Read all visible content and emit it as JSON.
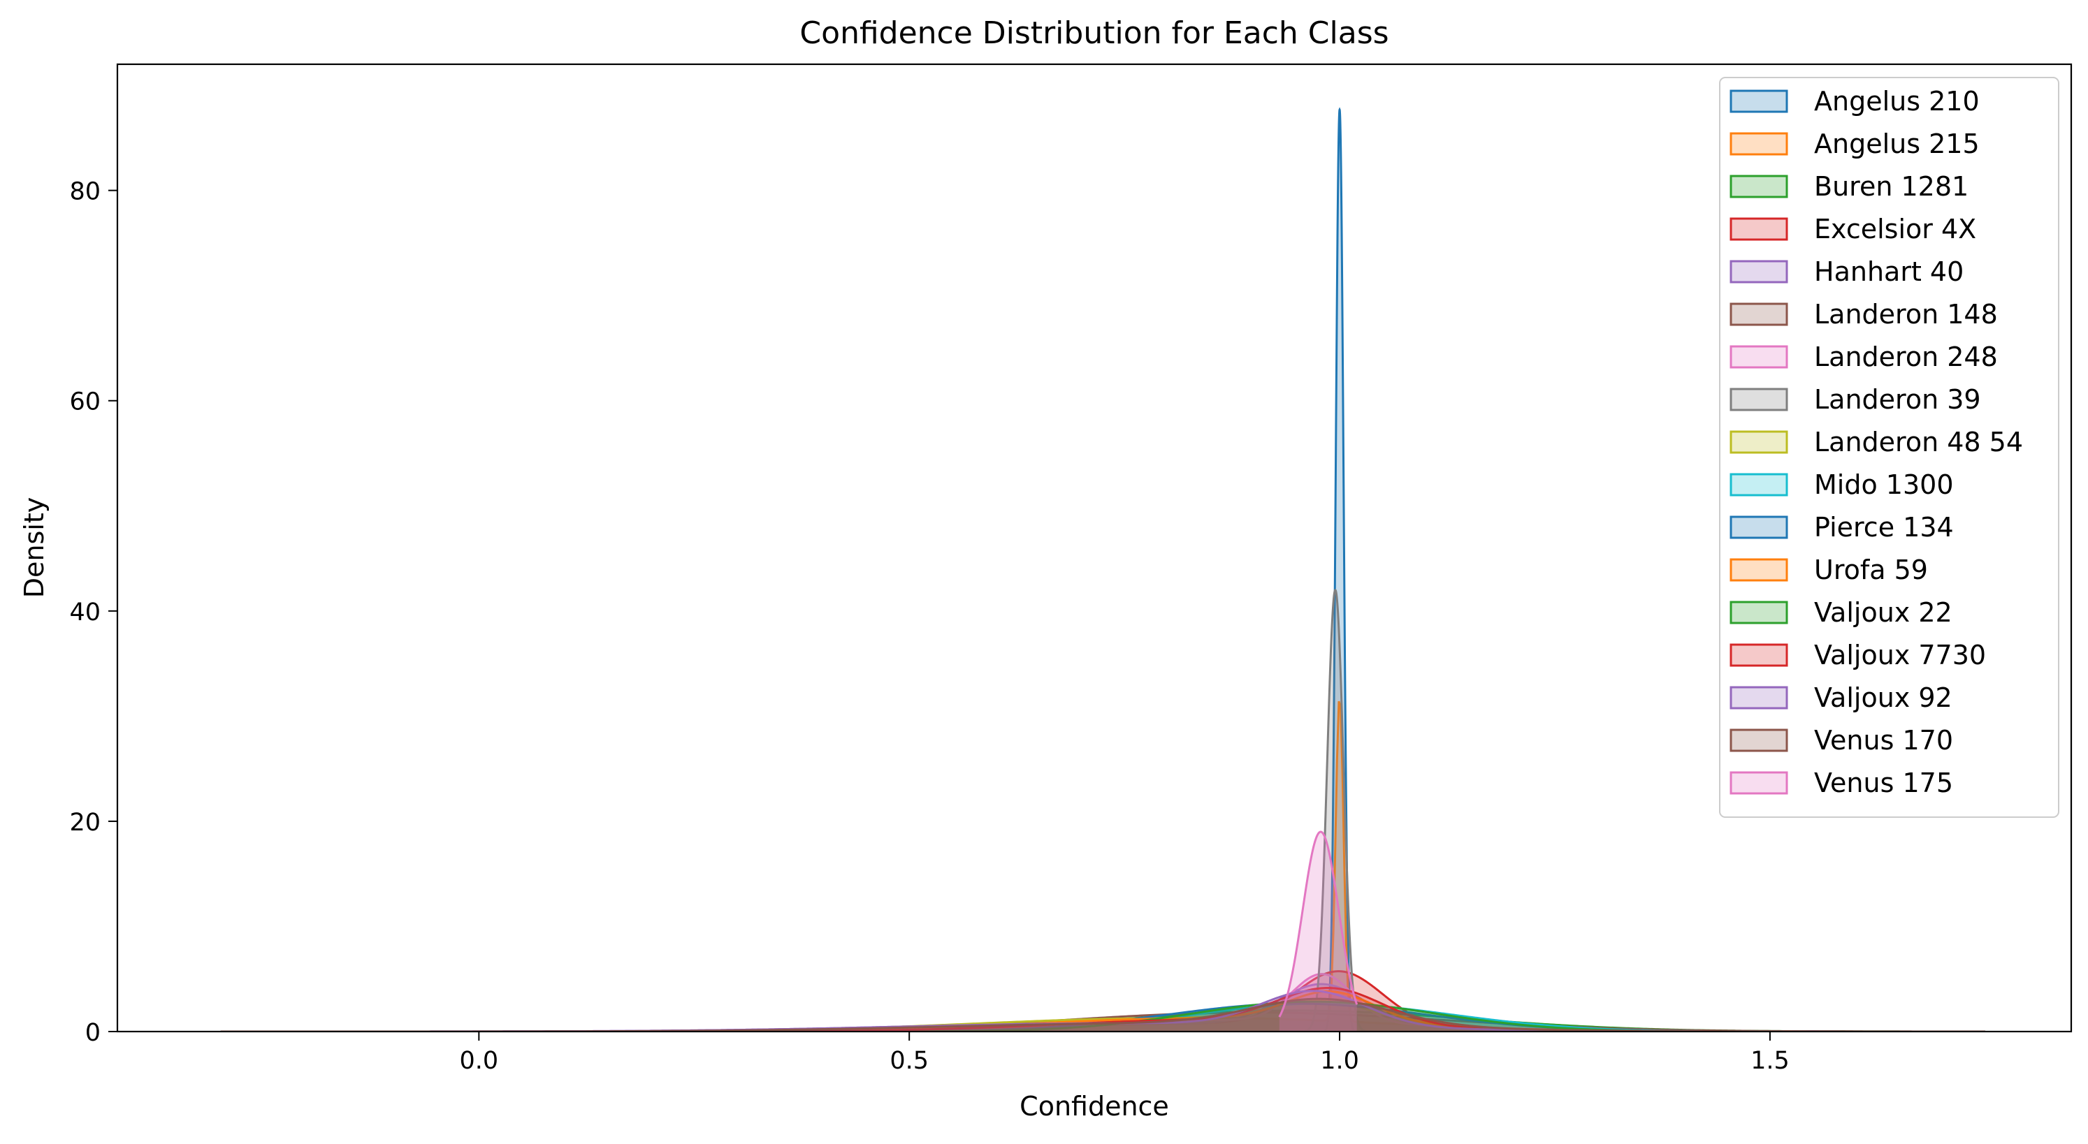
{
  "chart_data": {
    "type": "area",
    "title": "Confidence Distribution for Each Class",
    "xlabel": "Confidence",
    "ylabel": "Density",
    "xlim": [
      -0.42,
      1.85
    ],
    "ylim": [
      0,
      92
    ],
    "x_ticks": [
      {
        "value": 0.0,
        "label": "0.0"
      },
      {
        "value": 0.5,
        "label": "0.5"
      },
      {
        "value": 1.0,
        "label": "1.0"
      },
      {
        "value": 1.5,
        "label": "1.5"
      }
    ],
    "y_ticks": [
      {
        "value": 0,
        "label": "0"
      },
      {
        "value": 20,
        "label": "20"
      },
      {
        "value": 40,
        "label": "40"
      },
      {
        "value": 60,
        "label": "60"
      },
      {
        "value": 80,
        "label": "80"
      }
    ],
    "grid": false,
    "legend_position": "top-right",
    "series": [
      {
        "name": "Angelus 210",
        "color": "#1f77b4",
        "domain": [
          0.96,
          1.04
        ],
        "components": [
          {
            "weight": 1.0,
            "mu": 1.0,
            "sigma": 0.00455
          }
        ]
      },
      {
        "name": "Angelus 215",
        "color": "#ff7f0e",
        "domain": [
          -0.2,
          1.7
        ],
        "components": [
          {
            "weight": 0.35,
            "mu": 1.0,
            "sigma": 0.0045
          },
          {
            "weight": 0.65,
            "mu": 0.85,
            "sigma": 0.2
          }
        ]
      },
      {
        "name": "Buren 1281",
        "color": "#2ca02c",
        "domain": [
          -0.3,
          1.75
        ],
        "components": [
          {
            "weight": 1.0,
            "mu": 0.95,
            "sigma": 0.2
          }
        ]
      },
      {
        "name": "Excelsior 4X",
        "color": "#d62728",
        "domain": [
          0.2,
          1.6
        ],
        "components": [
          {
            "weight": 0.65,
            "mu": 1.0,
            "sigma": 0.05
          },
          {
            "weight": 0.35,
            "mu": 0.85,
            "sigma": 0.18
          }
        ]
      },
      {
        "name": "Hanhart 40",
        "color": "#9467bd",
        "domain": [
          -0.3,
          1.7
        ],
        "components": [
          {
            "weight": 0.5,
            "mu": 0.98,
            "sigma": 0.05
          },
          {
            "weight": 0.5,
            "mu": 0.75,
            "sigma": 0.25
          }
        ]
      },
      {
        "name": "Landeron 148",
        "color": "#8c564b",
        "domain": [
          -0.3,
          1.75
        ],
        "components": [
          {
            "weight": 1.0,
            "mu": 0.9,
            "sigma": 0.22
          }
        ]
      },
      {
        "name": "Landeron 248",
        "color": "#e377c2",
        "domain": [
          0.3,
          1.6
        ],
        "components": [
          {
            "weight": 0.4,
            "mu": 0.98,
            "sigma": 0.035
          },
          {
            "weight": 0.6,
            "mu": 0.85,
            "sigma": 0.22
          }
        ]
      },
      {
        "name": "Landeron 39",
        "color": "#7f7f7f",
        "domain": [
          0.95,
          1.03
        ],
        "components": [
          {
            "weight": 1.0,
            "mu": 0.995,
            "sigma": 0.0095
          }
        ]
      },
      {
        "name": "Landeron 48 54",
        "color": "#bcbd22",
        "domain": [
          -0.2,
          1.7
        ],
        "components": [
          {
            "weight": 0.3,
            "mu": 0.98,
            "sigma": 0.06
          },
          {
            "weight": 0.7,
            "mu": 0.8,
            "sigma": 0.22
          }
        ]
      },
      {
        "name": "Mido 1300",
        "color": "#17becf",
        "domain": [
          0.3,
          1.6
        ],
        "components": [
          {
            "weight": 1.0,
            "mu": 0.98,
            "sigma": 0.15
          }
        ]
      },
      {
        "name": "Pierce 134",
        "color": "#1f77b4",
        "domain": [
          -0.3,
          1.75
        ],
        "components": [
          {
            "weight": 1.0,
            "mu": 0.95,
            "sigma": 0.15
          }
        ]
      },
      {
        "name": "Urofa 59",
        "color": "#ff7f0e",
        "domain": [
          0.2,
          1.6
        ],
        "components": [
          {
            "weight": 0.35,
            "mu": 0.99,
            "sigma": 0.05
          },
          {
            "weight": 0.65,
            "mu": 0.85,
            "sigma": 0.2
          }
        ]
      },
      {
        "name": "Valjoux 22",
        "color": "#2ca02c",
        "domain": [
          0.2,
          1.7
        ],
        "components": [
          {
            "weight": 1.0,
            "mu": 0.97,
            "sigma": 0.14
          }
        ]
      },
      {
        "name": "Valjoux 7730",
        "color": "#d62728",
        "domain": [
          0.2,
          1.6
        ],
        "components": [
          {
            "weight": 0.5,
            "mu": 0.99,
            "sigma": 0.06
          },
          {
            "weight": 0.5,
            "mu": 0.85,
            "sigma": 0.18
          }
        ]
      },
      {
        "name": "Valjoux 92",
        "color": "#9467bd",
        "domain": [
          -0.3,
          1.7
        ],
        "components": [
          {
            "weight": 0.5,
            "mu": 0.97,
            "sigma": 0.06
          },
          {
            "weight": 0.5,
            "mu": 0.75,
            "sigma": 0.25
          }
        ]
      },
      {
        "name": "Venus 170",
        "color": "#8c564b",
        "domain": [
          -0.3,
          1.75
        ],
        "components": [
          {
            "weight": 0.5,
            "mu": 0.98,
            "sigma": 0.08
          },
          {
            "weight": 0.5,
            "mu": 0.8,
            "sigma": 0.25
          }
        ]
      },
      {
        "name": "Venus 175",
        "color": "#e377c2",
        "domain": [
          0.93,
          1.02
        ],
        "components": [
          {
            "weight": 1.0,
            "mu": 0.978,
            "sigma": 0.021
          }
        ]
      }
    ]
  }
}
